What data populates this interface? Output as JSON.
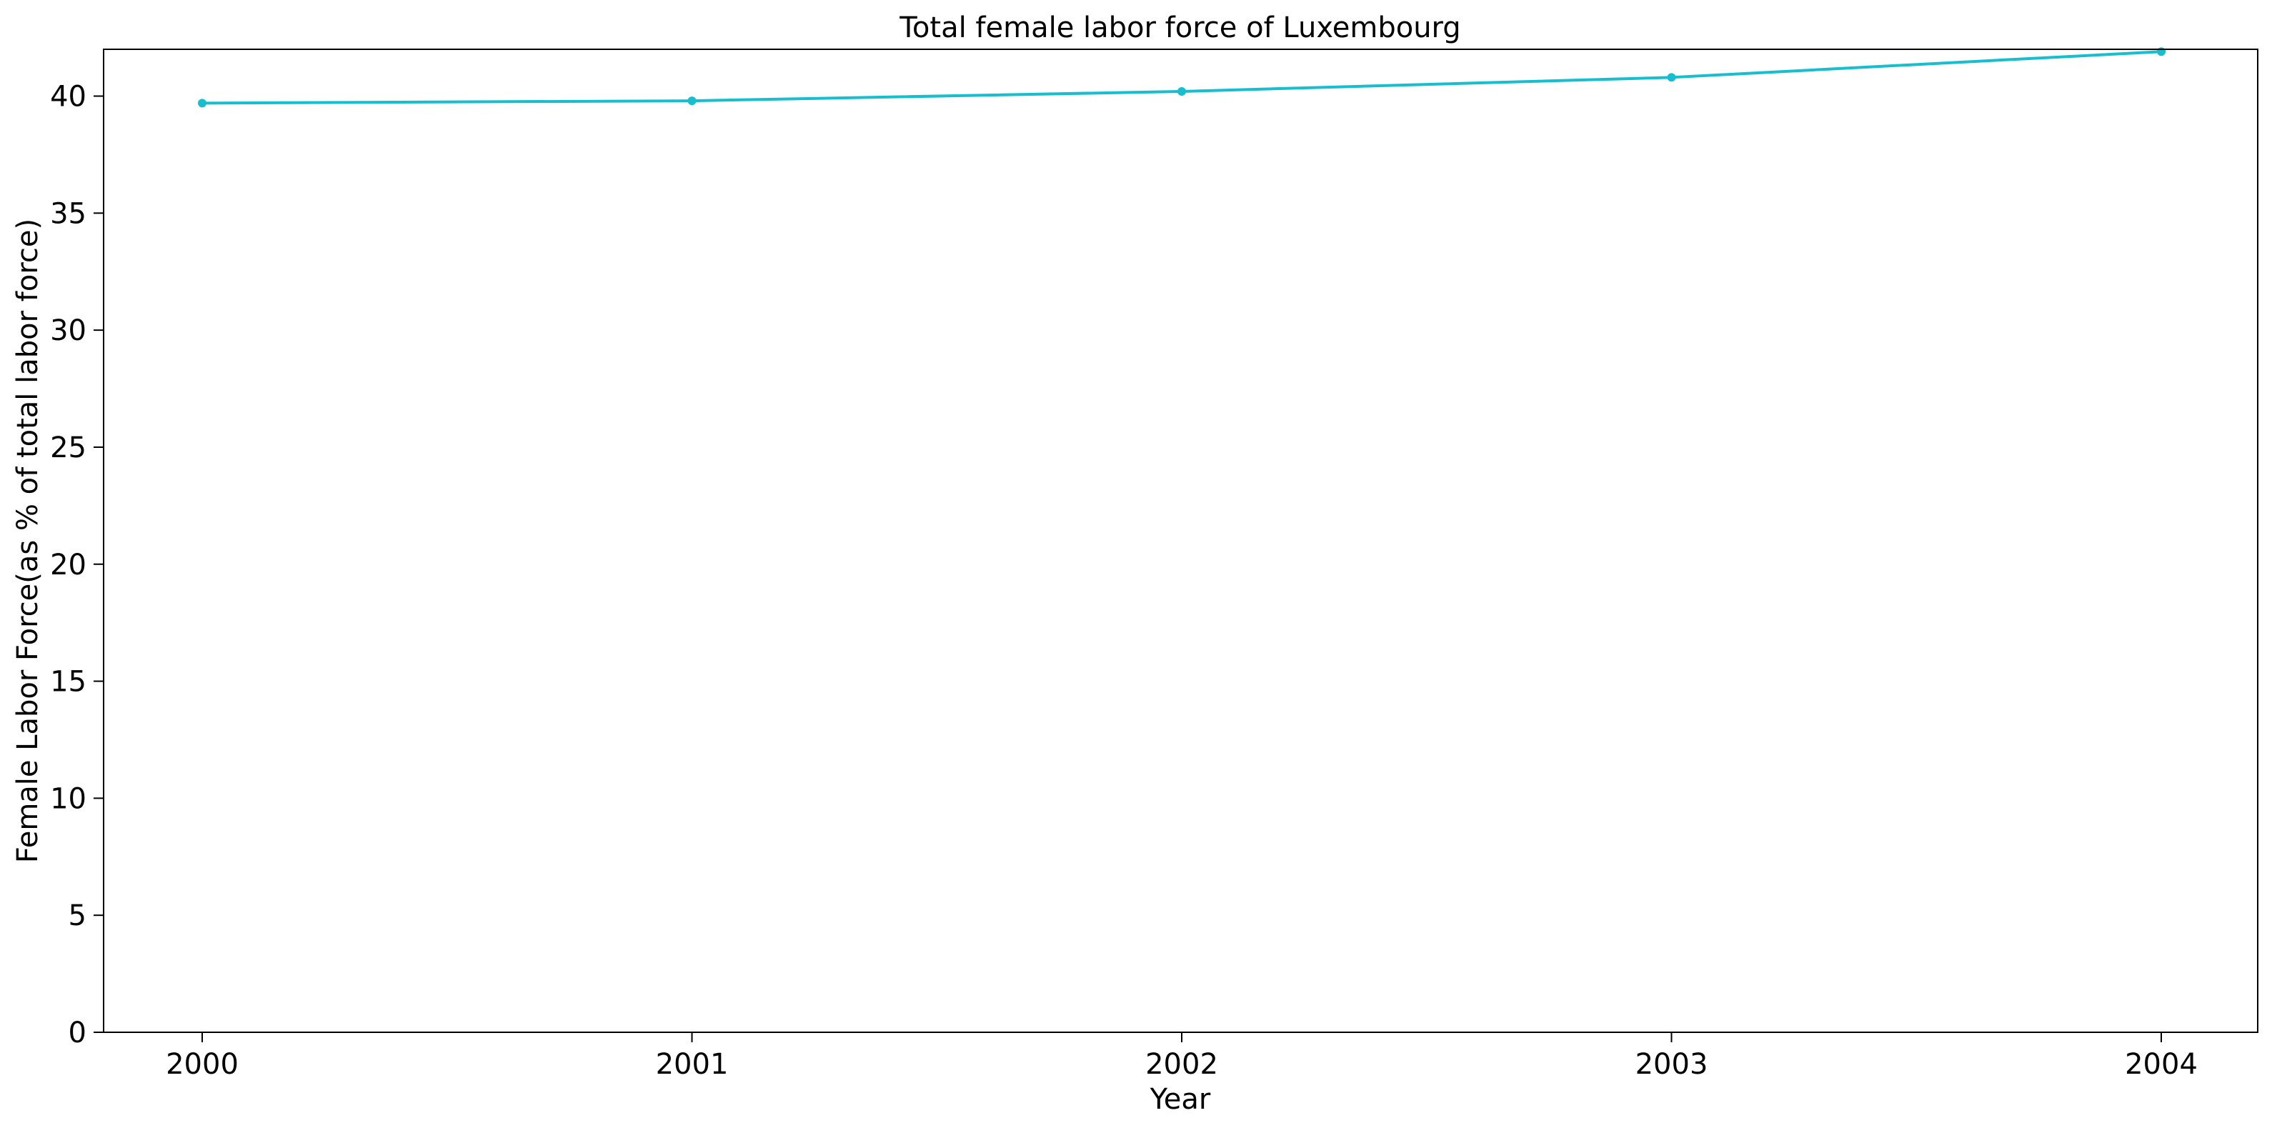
{
  "chart_data": {
    "type": "line",
    "title": "Total female labor force of Luxembourg",
    "xlabel": "Year",
    "ylabel": "Female Labor Force(as % of total labor force)",
    "x": [
      "2000",
      "2001",
      "2002",
      "2003",
      "2004"
    ],
    "x_ticks": [
      "2000",
      "2001",
      "2002",
      "2003",
      "2004"
    ],
    "y_ticks": [
      0,
      5,
      10,
      15,
      20,
      25,
      30,
      35,
      40
    ],
    "ylim": [
      0,
      42
    ],
    "grid": false,
    "series": [
      {
        "values": [
          39.7,
          39.8,
          40.2,
          40.8,
          41.9
        ],
        "color": "#17becf",
        "marker": "circle"
      }
    ]
  }
}
